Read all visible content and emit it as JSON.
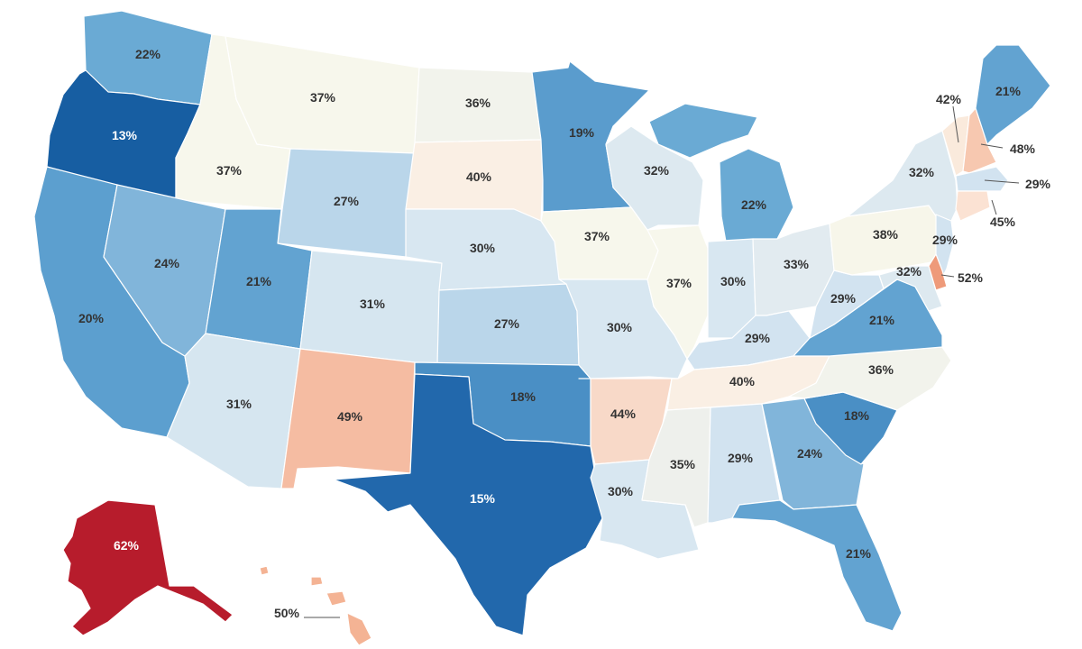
{
  "chart_data": {
    "type": "choropleth",
    "unit": "%",
    "legend": "none",
    "regions": [
      {
        "id": "WA",
        "value": 22,
        "label": "22%",
        "color": "#6aaad4"
      },
      {
        "id": "OR",
        "value": 13,
        "label": "13%",
        "color": "#175ea2"
      },
      {
        "id": "CA",
        "value": 20,
        "label": "20%",
        "color": "#5c9fcf"
      },
      {
        "id": "ID",
        "value": 37,
        "label": "37%",
        "color": "#f7f7ec"
      },
      {
        "id": "NV",
        "value": 24,
        "label": "24%",
        "color": "#81b5da"
      },
      {
        "id": "MT",
        "value": 37,
        "label": "37%",
        "color": "#f7f7ec"
      },
      {
        "id": "WY",
        "value": 27,
        "label": "27%",
        "color": "#bad6ea"
      },
      {
        "id": "UT",
        "value": 21,
        "label": "21%",
        "color": "#62a3d1"
      },
      {
        "id": "AZ",
        "value": 31,
        "label": "31%",
        "color": "#d6e6f0"
      },
      {
        "id": "CO",
        "value": 31,
        "label": "31%",
        "color": "#d6e6f0"
      },
      {
        "id": "NM",
        "value": 49,
        "label": "49%",
        "color": "#f5bca2"
      },
      {
        "id": "ND",
        "value": 36,
        "label": "36%",
        "color": "#f2f3ec"
      },
      {
        "id": "SD",
        "value": 40,
        "label": "40%",
        "color": "#faefe4"
      },
      {
        "id": "NE",
        "value": 30,
        "label": "30%",
        "color": "#d8e7f1"
      },
      {
        "id": "KS",
        "value": 27,
        "label": "27%",
        "color": "#bad6ea"
      },
      {
        "id": "OK",
        "value": 18,
        "label": "18%",
        "color": "#4a8fc5"
      },
      {
        "id": "TX",
        "value": 15,
        "label": "15%",
        "color": "#2268ac"
      },
      {
        "id": "MN",
        "value": 19,
        "label": "19%",
        "color": "#5a9ccd"
      },
      {
        "id": "IA",
        "value": 37,
        "label": "37%",
        "color": "#f7f7ec"
      },
      {
        "id": "MO",
        "value": 30,
        "label": "30%",
        "color": "#d8e7f1"
      },
      {
        "id": "AR",
        "value": 44,
        "label": "44%",
        "color": "#f8d9c8"
      },
      {
        "id": "LA",
        "value": 30,
        "label": "30%",
        "color": "#d8e7f1"
      },
      {
        "id": "WI",
        "value": 32,
        "label": "32%",
        "color": "#dde9f0"
      },
      {
        "id": "IL",
        "value": 37,
        "label": "37%",
        "color": "#f7f7ec"
      },
      {
        "id": "MI",
        "value": 22,
        "label": "22%",
        "color": "#6aaad4"
      },
      {
        "id": "IN",
        "value": 30,
        "label": "30%",
        "color": "#d8e7f1"
      },
      {
        "id": "OH",
        "value": 33,
        "label": "33%",
        "color": "#e2ebf0"
      },
      {
        "id": "KY",
        "value": 29,
        "label": "29%",
        "color": "#d2e3f0"
      },
      {
        "id": "TN",
        "value": 40,
        "label": "40%",
        "color": "#faefe4"
      },
      {
        "id": "MS",
        "value": 35,
        "label": "35%",
        "color": "#eef0ec"
      },
      {
        "id": "AL",
        "value": 29,
        "label": "29%",
        "color": "#d2e3f0"
      },
      {
        "id": "GA",
        "value": 24,
        "label": "24%",
        "color": "#81b5da"
      },
      {
        "id": "FL",
        "value": 21,
        "label": "21%",
        "color": "#62a3d1"
      },
      {
        "id": "SC",
        "value": 18,
        "label": "18%",
        "color": "#4a8fc5"
      },
      {
        "id": "NC",
        "value": 36,
        "label": "36%",
        "color": "#f2f3ec"
      },
      {
        "id": "VA",
        "value": 21,
        "label": "21%",
        "color": "#62a3d1"
      },
      {
        "id": "WV",
        "value": 29,
        "label": "29%",
        "color": "#d2e3f0"
      },
      {
        "id": "PA",
        "value": 38,
        "label": "38%",
        "color": "#f7f6ea"
      },
      {
        "id": "NY",
        "value": 32,
        "label": "32%",
        "color": "#dde9f0"
      },
      {
        "id": "NJ",
        "value": 29,
        "label": "29%",
        "color": "#d2e3f0"
      },
      {
        "id": "MD",
        "value": 32,
        "label": "32%",
        "color": "#dde9f0"
      },
      {
        "id": "DE",
        "value": 52,
        "label": "52%",
        "color": "#ee9a7a"
      },
      {
        "id": "VT",
        "value": 42,
        "label": "42%",
        "color": "#faeadc"
      },
      {
        "id": "NH",
        "value": 48,
        "label": "48%",
        "color": "#f7c8b0"
      },
      {
        "id": "ME",
        "value": 21,
        "label": "21%",
        "color": "#62a3d1"
      },
      {
        "id": "MA",
        "value": 29,
        "label": "29%",
        "color": "#d2e3f0"
      },
      {
        "id": "CT",
        "value": 45,
        "label": "45%",
        "color": "#fbe2d3"
      },
      {
        "id": "AK",
        "value": 62,
        "label": "62%",
        "color": "#b71c2c"
      },
      {
        "id": "HI",
        "value": 50,
        "label": "50%",
        "color": "#f4b394"
      }
    ]
  }
}
